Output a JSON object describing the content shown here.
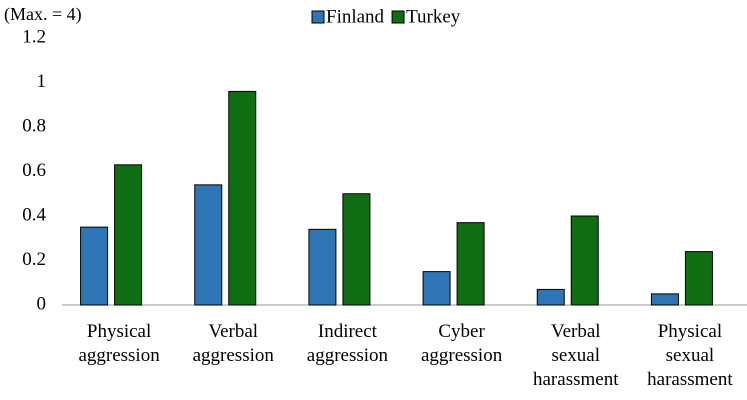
{
  "chart_data": {
    "type": "bar",
    "annotation": "(Max. = 4)",
    "categories": [
      "Physical aggression",
      "Verbal aggression",
      "Indirect aggression",
      "Cyber aggression",
      "Verbal sexual harassment",
      "Physical sexual harassment"
    ],
    "series": [
      {
        "name": "Finland",
        "color": "#2e75b6",
        "values": [
          0.35,
          0.54,
          0.34,
          0.15,
          0.07,
          0.05
        ]
      },
      {
        "name": "Turkey",
        "color": "#0f6e13",
        "values": [
          0.63,
          0.96,
          0.5,
          0.37,
          0.4,
          0.24
        ]
      }
    ],
    "ylim": [
      0,
      1.2
    ],
    "yticks": [
      0,
      0.2,
      0.4,
      0.6,
      0.8,
      1,
      1.2
    ],
    "grid": false,
    "legend": "top"
  }
}
